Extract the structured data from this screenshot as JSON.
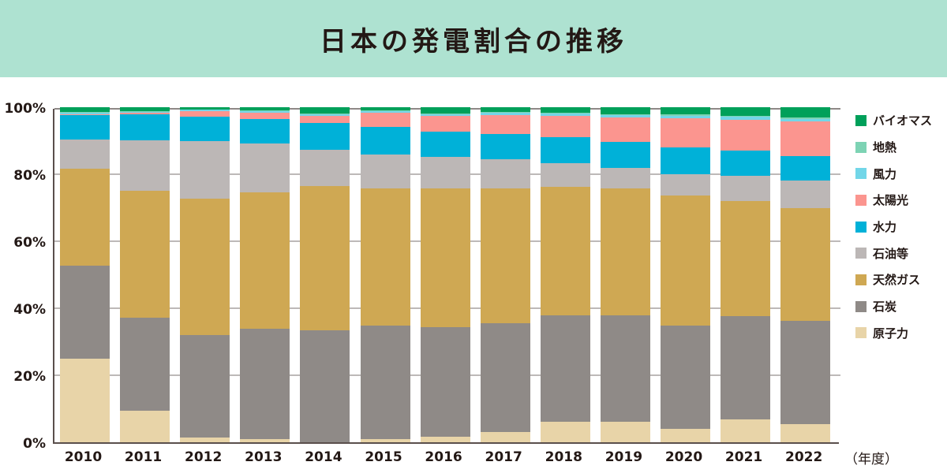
{
  "header": {
    "title": "日本の発電割合の推移"
  },
  "axis": {
    "y_ticks": [
      "0%",
      "20%",
      "40%",
      "60%",
      "80%",
      "100%"
    ],
    "x_unit": "（年度）"
  },
  "legend": [
    {
      "key": "biomass",
      "label": "バイオマス",
      "color": "#00a05a"
    },
    {
      "key": "geothermal",
      "label": "地熱",
      "color": "#7dd3b4"
    },
    {
      "key": "wind",
      "label": "風力",
      "color": "#72d6e8"
    },
    {
      "key": "solar",
      "label": "太陽光",
      "color": "#fb958f"
    },
    {
      "key": "hydro",
      "label": "水力",
      "color": "#00b1d8"
    },
    {
      "key": "oil",
      "label": "石油等",
      "color": "#bcb7b6"
    },
    {
      "key": "gas",
      "label": "天然ガス",
      "color": "#cfa853"
    },
    {
      "key": "coal",
      "label": "石炭",
      "color": "#8f8a87"
    },
    {
      "key": "nuclear",
      "label": "原子力",
      "color": "#e8d4a8"
    }
  ],
  "chart_data": {
    "type": "bar",
    "stacked": true,
    "title": "日本の発電割合の推移",
    "xlabel": "（年度）",
    "ylabel": "",
    "ylim": [
      0,
      100
    ],
    "y_ticks": [
      "0%",
      "20%",
      "40%",
      "60%",
      "80%",
      "100%"
    ],
    "grid": true,
    "legend_position": "right",
    "categories": [
      "2010",
      "2011",
      "2012",
      "2013",
      "2014",
      "2015",
      "2016",
      "2017",
      "2018",
      "2019",
      "2020",
      "2021",
      "2022"
    ],
    "series": [
      {
        "name": "原子力",
        "values": [
          25.0,
          9.3,
          1.5,
          0.9,
          0.0,
          0.9,
          1.7,
          3.1,
          6.2,
          6.2,
          3.9,
          6.9,
          5.5
        ]
      },
      {
        "name": "石炭",
        "values": [
          27.8,
          27.9,
          30.6,
          32.9,
          33.4,
          34.0,
          32.7,
          32.5,
          31.8,
          31.8,
          31.0,
          30.8,
          30.8
        ]
      },
      {
        "name": "天然ガス",
        "values": [
          28.9,
          37.8,
          40.5,
          40.9,
          43.1,
          40.9,
          41.3,
          40.2,
          38.3,
          37.7,
          38.8,
          34.4,
          33.7
        ]
      },
      {
        "name": "石油等",
        "values": [
          8.7,
          15.1,
          17.4,
          14.5,
          10.8,
          10.0,
          9.4,
          8.6,
          6.9,
          6.3,
          6.4,
          7.4,
          8.2
        ]
      },
      {
        "name": "水力",
        "values": [
          7.3,
          7.8,
          7.3,
          7.3,
          8.0,
          8.4,
          7.6,
          7.6,
          7.8,
          7.7,
          7.9,
          7.5,
          7.2
        ]
      },
      {
        "name": "太陽光",
        "values": [
          0.3,
          0.4,
          1.5,
          1.9,
          2.2,
          4.2,
          4.8,
          5.7,
          6.4,
          7.3,
          8.7,
          9.2,
          10.3
        ]
      },
      {
        "name": "風力",
        "values": [
          0.3,
          0.4,
          0.4,
          0.5,
          0.5,
          0.5,
          0.5,
          0.6,
          0.7,
          0.7,
          0.8,
          0.9,
          0.9
        ]
      },
      {
        "name": "地熱",
        "values": [
          0.3,
          0.2,
          0.2,
          0.2,
          0.2,
          0.2,
          0.2,
          0.2,
          0.2,
          0.3,
          0.3,
          0.3,
          0.3
        ]
      },
      {
        "name": "バイオマス",
        "values": [
          1.4,
          1.1,
          0.6,
          0.9,
          1.8,
          0.9,
          1.8,
          1.5,
          1.7,
          2.0,
          2.2,
          2.6,
          3.1
        ]
      }
    ]
  }
}
